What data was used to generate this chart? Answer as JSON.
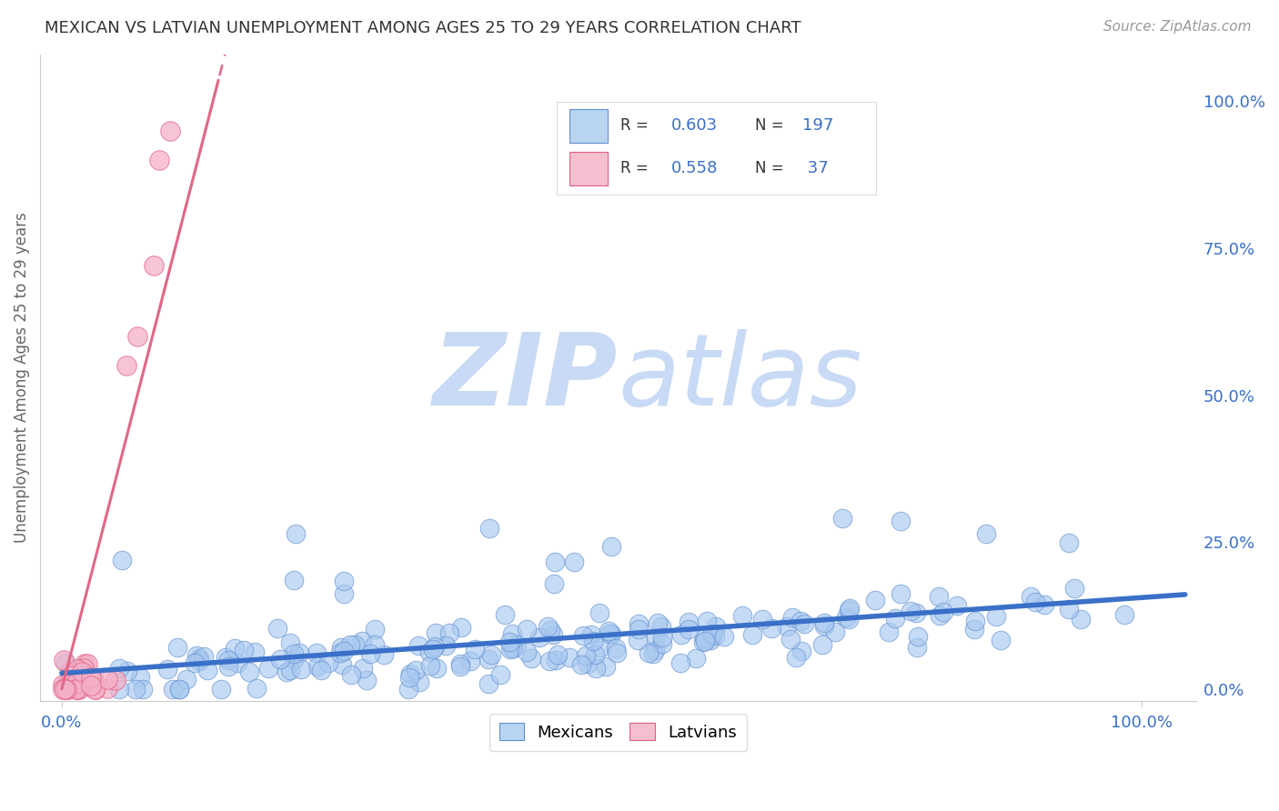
{
  "title": "MEXICAN VS LATVIAN UNEMPLOYMENT AMONG AGES 25 TO 29 YEARS CORRELATION CHART",
  "source_text": "Source: ZipAtlas.com",
  "ylabel": "Unemployment Among Ages 25 to 29 years",
  "right_ytick_labels": [
    "0.0%",
    "25.0%",
    "50.0%",
    "75.0%",
    "100.0%"
  ],
  "right_ytick_values": [
    0.0,
    0.25,
    0.5,
    0.75,
    1.0
  ],
  "xtick_labels": [
    "0.0%",
    "100.0%"
  ],
  "xlim": [
    -0.02,
    1.05
  ],
  "ylim": [
    -0.02,
    1.08
  ],
  "blue_R": 0.603,
  "blue_N": 197,
  "pink_R": 0.558,
  "pink_N": 37,
  "blue_color": "#a8c8f0",
  "pink_color": "#f4b0c8",
  "blue_edge_color": "#6090d0",
  "pink_edge_color": "#e06080",
  "trend_blue_color": "#3a70c8",
  "trend_pink_color": "#e06888",
  "watermark_zip_color": "#c8daf5",
  "watermark_atlas_color": "#c8daf5",
  "legend_blue_color": "#b8d4f0",
  "legend_pink_color": "#f4c0d0",
  "title_color": "#333333",
  "stat_color": "#3a70c8",
  "axis_color": "#3a70c8",
  "background_color": "#ffffff",
  "grid_color": "#c8d8e8",
  "figsize": [
    14.06,
    8.92
  ],
  "dpi": 100,
  "seed": 42
}
